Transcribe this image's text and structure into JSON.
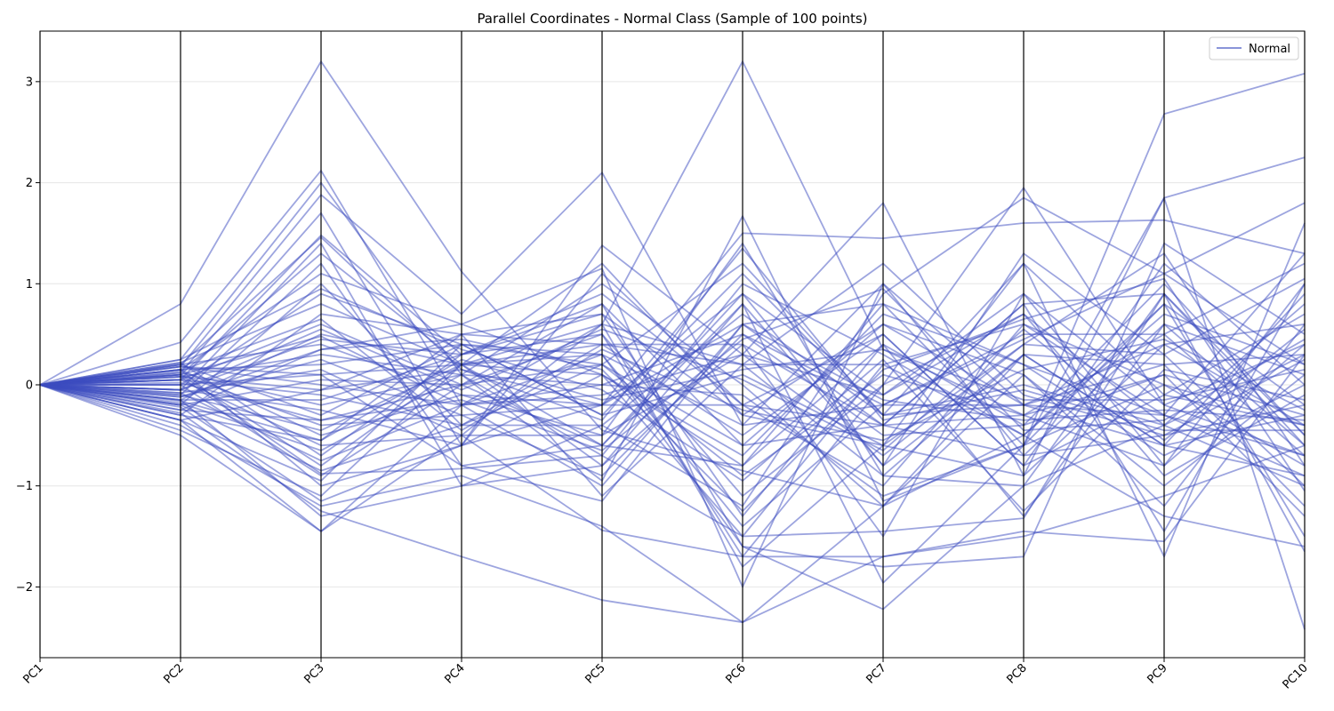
{
  "chart_data": {
    "type": "line",
    "title": "Parallel Coordinates - Normal Class (Sample of 100 points)",
    "xlabel": "",
    "ylabel": "",
    "categories": [
      "PC1",
      "PC2",
      "PC3",
      "PC4",
      "PC5",
      "PC6",
      "PC7",
      "PC8",
      "PC9",
      "PC10"
    ],
    "y_ticks": [
      -2,
      -1,
      0,
      1,
      2,
      3
    ],
    "y_tick_labels": [
      "−2",
      "−1",
      "0",
      "1",
      "2",
      "3"
    ],
    "ylim": [
      -2.7,
      3.5
    ],
    "grid": "horizontal",
    "legend": {
      "position": "top-right",
      "entries": [
        "Normal"
      ]
    },
    "series_color": "#3b4cc0",
    "series_alpha": 0.5,
    "series_group": "Normal",
    "series": [
      {
        "values": [
          0,
          0.8,
          3.2,
          1.12,
          -0.45,
          -0.85,
          -1.2,
          0.3,
          -0.6,
          -0.9
        ]
      },
      {
        "values": [
          0,
          0.42,
          2.12,
          -0.2,
          0.6,
          3.2,
          0.35,
          -0.3,
          0.1,
          -0.3
        ]
      },
      {
        "values": [
          0,
          0.25,
          2.0,
          0.1,
          -0.95,
          1.67,
          -1.15,
          -0.6,
          2.68,
          3.08
        ]
      },
      {
        "values": [
          0,
          0.18,
          1.88,
          0.7,
          2.1,
          -0.4,
          -0.2,
          0.45,
          1.1,
          0.2
        ]
      },
      {
        "values": [
          0,
          0.12,
          1.7,
          -0.6,
          1.38,
          0.3,
          1.8,
          -0.9,
          1.85,
          2.25
        ]
      },
      {
        "values": [
          0,
          0.05,
          1.48,
          0.3,
          0.5,
          -1.7,
          0.0,
          1.95,
          -0.2,
          -0.7
        ]
      },
      {
        "values": [
          0,
          0.2,
          1.46,
          0.15,
          -0.2,
          1.5,
          1.45,
          1.6,
          1.63,
          1.3
        ]
      },
      {
        "values": [
          0,
          -0.05,
          1.4,
          -1.0,
          -0.4,
          -1.2,
          0.9,
          1.85,
          1.1,
          1.8
        ]
      },
      {
        "values": [
          0,
          0.1,
          1.3,
          0.2,
          1.2,
          -0.3,
          -0.6,
          1.2,
          -1.7,
          1.6
        ]
      },
      {
        "values": [
          0,
          -0.1,
          1.2,
          -0.8,
          -0.6,
          0.8,
          -0.8,
          1.3,
          0.3,
          1.05
        ]
      },
      {
        "values": [
          0,
          0.15,
          1.1,
          0.6,
          1.15,
          -2.0,
          1.0,
          -0.2,
          -0.3,
          -0.7
        ]
      },
      {
        "values": [
          0,
          -0.2,
          1.0,
          -0.4,
          0.2,
          -0.6,
          -0.4,
          -0.7,
          -0.5,
          0.25
        ]
      },
      {
        "values": [
          0,
          0.0,
          0.9,
          0.4,
          -0.3,
          1.1,
          -0.3,
          1.2,
          -0.1,
          -0.4
        ]
      },
      {
        "values": [
          0,
          0.22,
          0.8,
          0.2,
          0.4,
          0.4,
          -1.5,
          0.9,
          -0.8,
          1.0
        ]
      },
      {
        "values": [
          0,
          -0.3,
          0.7,
          0.5,
          -1.1,
          0.2,
          0.2,
          -0.5,
          0.8,
          -1.5
        ]
      },
      {
        "values": [
          0,
          0.05,
          0.6,
          0.0,
          0.8,
          -1.6,
          -1.8,
          -1.7,
          1.4,
          0.5
        ]
      },
      {
        "values": [
          0,
          -0.15,
          0.5,
          0.2,
          -0.6,
          0.9,
          -0.1,
          0.7,
          -0.4,
          0.3
        ]
      },
      {
        "values": [
          0,
          0.1,
          0.48,
          -0.2,
          0.0,
          0.5,
          -0.5,
          -0.4,
          1.0,
          -0.5
        ]
      },
      {
        "values": [
          0,
          -0.05,
          0.45,
          0.3,
          0.7,
          -0.3,
          0.6,
          -0.2,
          -0.6,
          -0.3
        ]
      },
      {
        "values": [
          0,
          0.2,
          0.4,
          -0.1,
          -0.5,
          1.4,
          -0.9,
          0.3,
          0.2,
          -1.2
        ]
      },
      {
        "values": [
          0,
          -0.25,
          0.35,
          0.6,
          0.1,
          -0.8,
          0.4,
          -1.3,
          0.6,
          0.1
        ]
      },
      {
        "values": [
          0,
          0.08,
          0.3,
          0.1,
          1.0,
          0.0,
          -1.2,
          0.1,
          -1.2,
          0.6
        ]
      },
      {
        "values": [
          0,
          -0.12,
          0.25,
          -0.3,
          -0.2,
          0.6,
          0.8,
          -0.6,
          0.0,
          -0.8
        ]
      },
      {
        "values": [
          0,
          0.15,
          0.2,
          0.4,
          0.3,
          -1.4,
          -0.2,
          0.5,
          0.5,
          1.2
        ]
      },
      {
        "values": [
          0,
          -0.08,
          0.15,
          -0.5,
          0.6,
          0.2,
          1.2,
          -0.1,
          -0.5,
          -0.2
        ]
      },
      {
        "values": [
          0,
          0.0,
          0.1,
          0.2,
          -0.8,
          0.4,
          -0.4,
          0.8,
          0.9,
          -0.6
        ]
      },
      {
        "values": [
          0,
          -0.2,
          0.05,
          0.0,
          0.2,
          -0.9,
          0.1,
          -0.3,
          -0.8,
          0.4
        ]
      },
      {
        "values": [
          0,
          0.18,
          0.0,
          -0.2,
          -0.1,
          0.3,
          -0.7,
          0.4,
          0.3,
          -1.0
        ]
      },
      {
        "values": [
          0,
          -0.35,
          -0.05,
          0.5,
          0.4,
          -0.5,
          0.5,
          -0.8,
          1.2,
          0.0
        ]
      },
      {
        "values": [
          0,
          0.05,
          -0.1,
          -0.4,
          -0.4,
          0.7,
          -0.3,
          0.0,
          -0.4,
          0.8
        ]
      },
      {
        "values": [
          0,
          -0.15,
          -0.15,
          0.3,
          0.9,
          -0.2,
          -1.0,
          0.6,
          0.0,
          -0.4
        ]
      },
      {
        "values": [
          0,
          0.12,
          -0.2,
          0.1,
          -0.7,
          1.0,
          0.3,
          -0.5,
          0.7,
          0.2
        ]
      },
      {
        "values": [
          0,
          -0.05,
          -0.25,
          -0.6,
          0.1,
          -0.7,
          0.7,
          0.2,
          -0.3,
          -0.9
        ]
      },
      {
        "values": [
          0,
          0.2,
          -0.3,
          0.4,
          -0.3,
          0.1,
          -0.6,
          -0.9,
          0.4,
          0.6
        ]
      },
      {
        "values": [
          0,
          -0.25,
          -0.35,
          0.0,
          0.5,
          -1.1,
          0.0,
          0.7,
          -0.9,
          -0.1
        ]
      },
      {
        "values": [
          0,
          0.1,
          -0.4,
          -0.3,
          -0.9,
          0.5,
          -0.2,
          -0.2,
          0.2,
          0.3
        ]
      },
      {
        "values": [
          0,
          -0.1,
          -0.45,
          0.2,
          0.3,
          -0.4,
          1.0,
          -0.7,
          0.6,
          -0.6
        ]
      },
      {
        "values": [
          0,
          0.15,
          -0.5,
          -0.1,
          -0.2,
          0.9,
          -0.8,
          0.3,
          -0.6,
          0.9
        ]
      },
      {
        "values": [
          0,
          -0.3,
          -0.55,
          0.5,
          0.7,
          -1.3,
          0.4,
          -0.4,
          0.1,
          -1.3
        ]
      },
      {
        "values": [
          0,
          0.05,
          -0.6,
          -0.5,
          -0.5,
          0.3,
          -0.1,
          0.9,
          -0.2,
          0.4
        ]
      },
      {
        "values": [
          0,
          -0.18,
          -0.65,
          0.1,
          0.0,
          -0.1,
          -1.1,
          -0.6,
          0.8,
          -0.2
        ]
      },
      {
        "values": [
          0,
          0.22,
          -0.7,
          0.3,
          0.8,
          -0.6,
          0.6,
          0.1,
          -1.0,
          0.1
        ]
      },
      {
        "values": [
          0,
          -0.08,
          -0.75,
          -0.2,
          -1.0,
          0.6,
          -0.4,
          -0.3,
          0.5,
          -0.7
        ]
      },
      {
        "values": [
          0,
          0.1,
          -0.8,
          0.2,
          0.1,
          -1.5,
          0.2,
          0.6,
          -0.3,
          1.3
        ]
      },
      {
        "values": [
          0,
          -0.2,
          -0.85,
          -0.4,
          0.4,
          0.2,
          -0.9,
          -1.0,
          0.9,
          -0.5
        ]
      },
      {
        "values": [
          0,
          0.0,
          -0.9,
          0.0,
          -0.6,
          -0.8,
          0.8,
          0.2,
          -0.7,
          0.0
        ]
      },
      {
        "values": [
          0,
          -0.35,
          -0.95,
          0.4,
          0.2,
          1.2,
          -0.3,
          -0.2,
          0.4,
          -0.4
        ]
      },
      {
        "values": [
          0,
          0.15,
          -1.0,
          -0.6,
          -0.2,
          -0.2,
          0.5,
          -0.8,
          -0.1,
          0.7
        ]
      },
      {
        "values": [
          0,
          -0.45,
          -1.1,
          0.2,
          0.6,
          -1.8,
          -0.6,
          0.4,
          1.3,
          -0.8
        ]
      },
      {
        "values": [
          0,
          -0.4,
          -1.2,
          -0.9,
          -1.4,
          -2.35,
          -1.2,
          -0.5,
          -1.3,
          -1.6
        ]
      },
      {
        "values": [
          0,
          -0.28,
          -1.25,
          -1.7,
          -2.13,
          -2.35,
          -1.7,
          -1.5,
          -1.1,
          -0.6
        ]
      },
      {
        "values": [
          0,
          -0.5,
          -1.45,
          -0.2,
          0.3,
          -1.6,
          -2.22,
          -1.0,
          -0.4,
          -1.0
        ]
      },
      {
        "values": [
          0,
          -0.35,
          -1.45,
          -0.5,
          -1.44,
          -1.7,
          -1.7,
          -1.45,
          -1.55,
          0.3
        ]
      },
      {
        "values": [
          0,
          -0.15,
          -1.3,
          -1.0,
          -0.8,
          0.8,
          -1.96,
          -0.6,
          1.85,
          -2.42
        ]
      },
      {
        "values": [
          0,
          0.08,
          -0.88,
          -0.83,
          -0.7,
          -1.5,
          -1.45,
          -1.32,
          0.9,
          -1.65
        ]
      },
      {
        "values": [
          0,
          -0.22,
          -1.15,
          -0.6,
          1.1,
          -0.2,
          -0.4,
          0.8,
          -1.45,
          1.0
        ]
      },
      {
        "values": [
          0,
          0.18,
          0.1,
          -0.8,
          -1.15,
          0.6,
          -0.15,
          -0.35,
          -0.25,
          -0.35
        ]
      },
      {
        "values": [
          0,
          0.25,
          0.95,
          0.35,
          -0.05,
          -0.95,
          0.25,
          -1.25,
          0.15,
          -0.15
        ]
      },
      {
        "values": [
          0,
          -0.05,
          0.55,
          -0.05,
          0.55,
          0.05,
          -0.65,
          0.55,
          -0.55,
          0.55
        ]
      },
      {
        "values": [
          0,
          0.08,
          -0.05,
          0.15,
          -0.35,
          1.35,
          -0.35,
          -0.05,
          -0.45,
          -0.45
        ]
      },
      {
        "values": [
          0,
          -0.12,
          0.35,
          0.45,
          0.15,
          -1.25,
          0.15,
          0.65,
          1.05,
          -1.05
        ]
      },
      {
        "values": [
          0,
          0.02,
          -0.35,
          -0.15,
          -0.65,
          0.45,
          0.95,
          -0.45,
          -0.35,
          0.45
        ]
      },
      {
        "values": [
          0,
          0.14,
          0.65,
          -0.45,
          0.35,
          -0.25,
          -0.55,
          0.15,
          0.45,
          -0.25
        ]
      },
      {
        "values": [
          0,
          -0.16,
          -0.55,
          0.25,
          -0.15,
          0.15,
          0.35,
          -0.15,
          -0.15,
          0.15
        ]
      }
    ]
  }
}
